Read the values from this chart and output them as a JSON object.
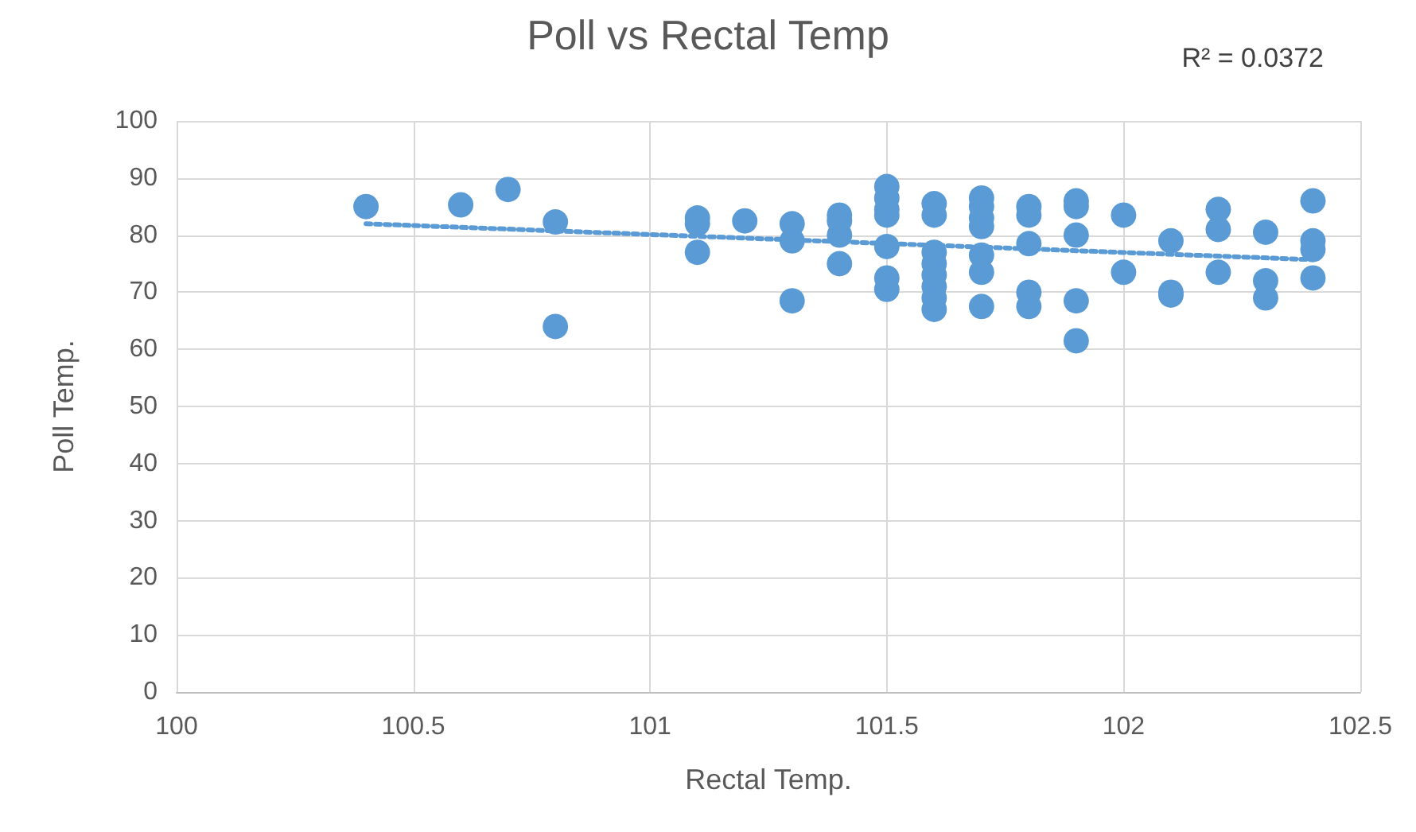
{
  "chart_data": {
    "type": "scatter",
    "title": "Poll vs Rectal Temp",
    "xlabel": "Rectal Temp.",
    "ylabel": "Poll Temp.",
    "annotations": [
      "R² = 0.0372"
    ],
    "series": [
      {
        "color": "#5b9bd5",
        "marker": "circle",
        "x": [
          100.4,
          100.6,
          100.7,
          100.8,
          100.8,
          101.1,
          101.1,
          101.1,
          101.2,
          101.3,
          101.3,
          101.3,
          101.4,
          101.4,
          101.4,
          101.4,
          101.5,
          101.5,
          101.5,
          101.5,
          101.5,
          101.5,
          101.5,
          101.6,
          101.6,
          101.6,
          101.6,
          101.6,
          101.6,
          101.6,
          101.6,
          101.7,
          101.7,
          101.7,
          101.7,
          101.7,
          101.7,
          101.7,
          101.8,
          101.8,
          101.8,
          101.8,
          101.8,
          101.9,
          101.9,
          101.9,
          101.9,
          101.9,
          102,
          102,
          102.1,
          102.1,
          102.1,
          102.2,
          102.2,
          102.2,
          102.3,
          102.3,
          102.3,
          102.4,
          102.4,
          102.4,
          102.4
        ],
        "values": [
          85,
          85.3,
          88,
          82.3,
          64,
          83,
          82,
          77,
          82.5,
          82,
          79,
          68.5,
          83.5,
          82.5,
          80,
          75,
          88.5,
          86.5,
          84.5,
          83.5,
          78,
          72.5,
          70.5,
          85.5,
          83.5,
          77,
          75,
          73,
          71,
          69,
          67,
          86.5,
          85,
          83,
          81.5,
          76.5,
          73.5,
          67.5,
          85,
          83.5,
          78.5,
          70,
          67.5,
          86,
          85,
          80,
          68.5,
          61.5,
          83.5,
          73.5,
          79,
          70,
          69.5,
          84.5,
          81,
          73.5,
          80.5,
          72,
          69,
          86,
          79,
          77.5,
          72.5
        ]
      },
      {
        "type": "line",
        "color": "#5b9bd5",
        "line_style": "dotted",
        "marker": "none",
        "x": [
          100.4,
          102.4
        ],
        "values": [
          82,
          75.7
        ]
      }
    ],
    "xlim": [
      100,
      102.5
    ],
    "xticks": [
      100,
      100.5,
      101,
      101.5,
      102,
      102.5
    ],
    "ylim": [
      0,
      100
    ],
    "yticks": [
      0,
      10,
      20,
      30,
      40,
      50,
      60,
      70,
      80,
      90,
      100
    ],
    "grid": true
  }
}
